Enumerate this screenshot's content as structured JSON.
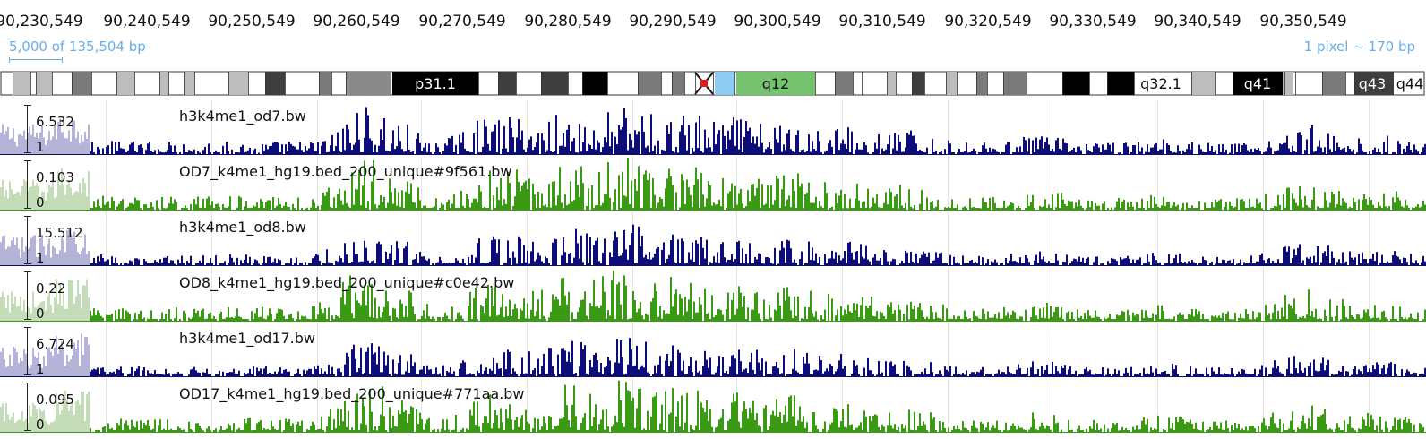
{
  "ruler": {
    "ticks": [
      "90,230,549",
      "90,240,549",
      "90,250,549",
      "90,260,549",
      "90,270,549",
      "90,280,549",
      "90,290,549",
      "90,300,549",
      "90,310,549",
      "90,320,549",
      "90,330,549",
      "90,340,549",
      "90,350,549"
    ],
    "scale_label": "5,000 of 135,504 bp",
    "pixel_label": "1 pixel ~ 170 bp"
  },
  "ideogram": {
    "bands": [
      "p31.1",
      "q12",
      "q32.1",
      "q41",
      "q43",
      "q44"
    ]
  },
  "colors": {
    "signal": "#0d0d7a",
    "peaks": "#3a9a14",
    "left_signal": "#b4b4d8",
    "left_peaks": "#c4dcb8",
    "scale_blue": "#6aaee8",
    "centromere_blue": "#8ecbf2",
    "band_green": "#76c36f"
  },
  "tracks": [
    {
      "name": "h3k4me1_od7.bw",
      "ymax": "6.532",
      "ymin": "1",
      "kind": "signal"
    },
    {
      "name": "OD7_k4me1_hg19.bed_200_unique#9f561.bw",
      "ymax": "0.103",
      "ymin": "0",
      "kind": "peaks"
    },
    {
      "name": "h3k4me1_od8.bw",
      "ymax": "15.512",
      "ymin": "1",
      "kind": "signal"
    },
    {
      "name": "OD8_k4me1_hg19.bed_200_unique#c0e42.bw",
      "ymax": "0.22",
      "ymin": "0",
      "kind": "peaks"
    },
    {
      "name": "h3k4me1_od17.bw",
      "ymax": "6.724",
      "ymin": "1",
      "kind": "signal"
    },
    {
      "name": "OD17_k4me1_hg19.bed_200_unique#771aa.bw",
      "ymax": "0.095",
      "ymin": "0",
      "kind": "peaks"
    }
  ]
}
